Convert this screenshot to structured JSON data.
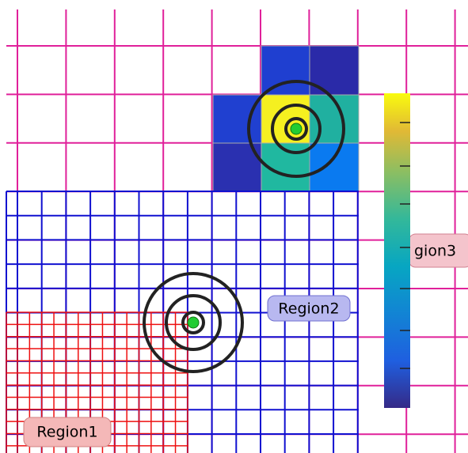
{
  "labels": {
    "region1": "Region1",
    "region2": "Region2",
    "region3": "gion3"
  }
}
